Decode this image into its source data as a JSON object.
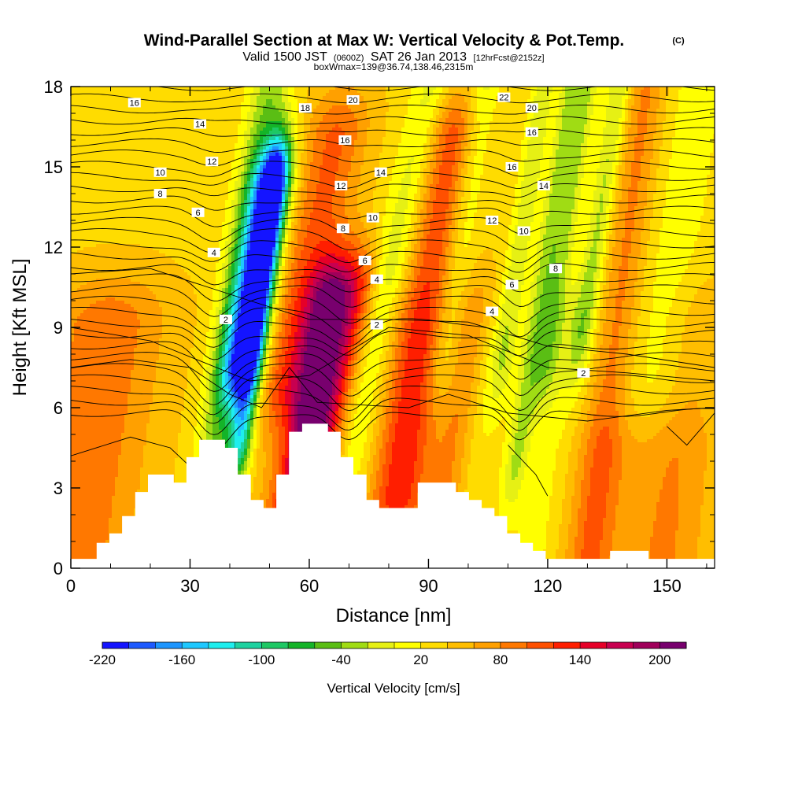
{
  "title": {
    "main": "Wind-Parallel Section at Max W: Vertical Velocity & Pot.Temp.",
    "copyright": "(C)",
    "valid_prefix": "Valid 1500 JST",
    "valid_utc": "(0600Z)",
    "valid_date": "SAT 26 Jan 2013",
    "forecast": "[12hrFcst@2152z]",
    "box_info": "boxWmax=139@36.74,138.46,2315m"
  },
  "chart_data": {
    "type": "heatmap",
    "xlabel": "Distance [nm]",
    "ylabel": "Height [Kft MSL]",
    "xlim": [
      0,
      162
    ],
    "ylim": [
      0,
      18
    ],
    "x_ticks": [
      0,
      30,
      60,
      90,
      120,
      150
    ],
    "y_ticks": [
      0,
      3,
      6,
      9,
      12,
      15,
      18
    ],
    "colorbar": {
      "title": "Vertical Velocity [cm/s]",
      "tick_labels": [
        "-220",
        "-160",
        "-100",
        "-40",
        "20",
        "80",
        "140",
        "200"
      ],
      "colors": [
        "#1414ff",
        "#1e5aff",
        "#1e96ff",
        "#1ec8ff",
        "#1eeeee",
        "#1ed2a0",
        "#1ec864",
        "#14b428",
        "#5abe14",
        "#a0dc14",
        "#e6f014",
        "#ffff00",
        "#ffdc00",
        "#ffbe00",
        "#ffa000",
        "#ff7800",
        "#ff5000",
        "#ff1e00",
        "#e60028",
        "#c80050",
        "#a0005a",
        "#78006e"
      ]
    },
    "terrain_top_kft": [
      [
        0,
        0.35
      ],
      [
        6.5,
        0.35
      ],
      [
        6.5,
        0.95
      ],
      [
        9.7,
        0.95
      ],
      [
        9.7,
        1.3
      ],
      [
        12.9,
        1.3
      ],
      [
        12.9,
        1.95
      ],
      [
        16.2,
        1.95
      ],
      [
        16.2,
        2.85
      ],
      [
        19.4,
        2.85
      ],
      [
        19.4,
        3.5
      ],
      [
        25.9,
        3.5
      ],
      [
        25.9,
        3.2
      ],
      [
        29.1,
        3.2
      ],
      [
        29.1,
        4.15
      ],
      [
        32.3,
        4.15
      ],
      [
        32.3,
        4.8
      ],
      [
        38.8,
        4.8
      ],
      [
        38.8,
        4.5
      ],
      [
        42,
        4.5
      ],
      [
        42,
        3.5
      ],
      [
        45.3,
        3.5
      ],
      [
        45.3,
        2.55
      ],
      [
        48.5,
        2.55
      ],
      [
        48.5,
        2.25
      ],
      [
        51.7,
        2.25
      ],
      [
        51.7,
        3.5
      ],
      [
        54.9,
        3.5
      ],
      [
        54.9,
        5.1
      ],
      [
        58.2,
        5.1
      ],
      [
        58.2,
        5.4
      ],
      [
        64.7,
        5.4
      ],
      [
        64.7,
        5.1
      ],
      [
        67.9,
        5.1
      ],
      [
        67.9,
        4.15
      ],
      [
        71.1,
        4.15
      ],
      [
        71.1,
        3.5
      ],
      [
        74.4,
        3.5
      ],
      [
        74.4,
        2.55
      ],
      [
        77.6,
        2.55
      ],
      [
        77.6,
        2.25
      ],
      [
        87.3,
        2.25
      ],
      [
        87.3,
        3.2
      ],
      [
        96.9,
        3.2
      ],
      [
        96.9,
        2.85
      ],
      [
        100.2,
        2.85
      ],
      [
        100.2,
        2.55
      ],
      [
        103.4,
        2.55
      ],
      [
        103.4,
        2.25
      ],
      [
        106.6,
        2.25
      ],
      [
        106.6,
        1.95
      ],
      [
        109.8,
        1.95
      ],
      [
        109.8,
        1.3
      ],
      [
        113.1,
        1.3
      ],
      [
        113.1,
        0.95
      ],
      [
        116.3,
        0.95
      ],
      [
        116.3,
        0.65
      ],
      [
        119.5,
        0.65
      ],
      [
        119.5,
        0.35
      ],
      [
        135.7,
        0.35
      ],
      [
        135.7,
        0.65
      ],
      [
        145.4,
        0.65
      ],
      [
        145.4,
        0.35
      ],
      [
        162,
        0.35
      ]
    ],
    "theta_contour_labels": [
      "2",
      "4",
      "6",
      "8",
      "10",
      "12",
      "14",
      "16",
      "18",
      "20",
      "22"
    ]
  },
  "colors": {
    "background": "#ffffff",
    "terrain": "#ffffff",
    "contour": "#000000"
  }
}
